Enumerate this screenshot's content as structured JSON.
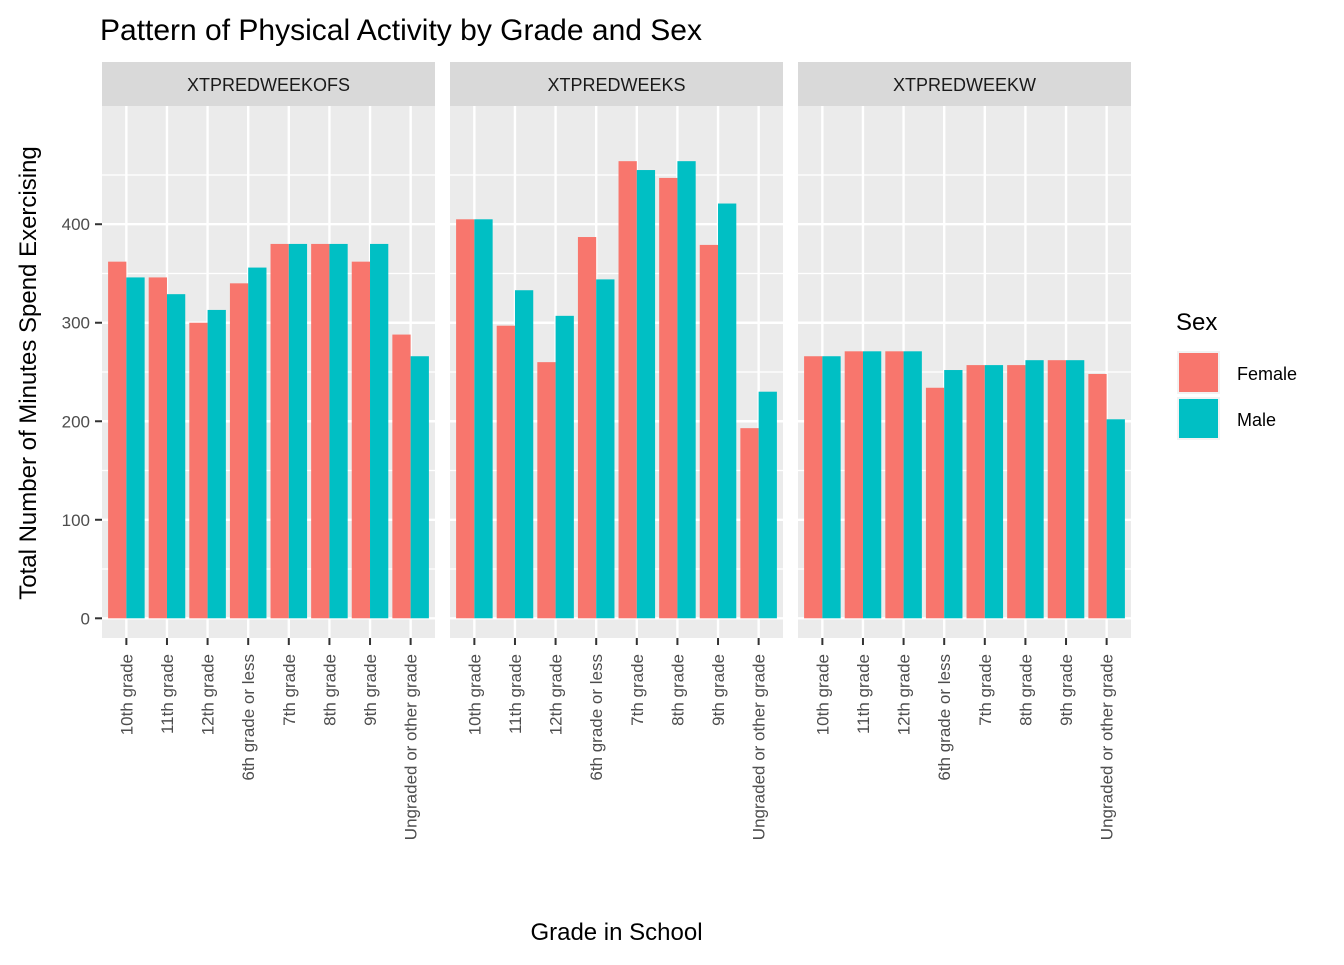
{
  "chart_data": {
    "type": "bar",
    "title": "Pattern of Physical Activity by Grade and Sex",
    "xlabel": "Grade in School",
    "ylabel": "Total Number of Minutes Spend Exercising",
    "ylim": [
      -20,
      520
    ],
    "yticks": [
      0,
      100,
      200,
      300,
      400
    ],
    "grid": true,
    "legend": {
      "title": "Sex",
      "position": "right"
    },
    "categories": [
      "10th grade",
      "11th grade",
      "12th grade",
      "6th grade or less",
      "7th grade",
      "8th grade",
      "9th grade",
      "Ungraded or other grade"
    ],
    "series_colors": {
      "Female": "#F8766D",
      "Male": "#00BFC4"
    },
    "facets": [
      {
        "label": "XTPREDWEEKOFS",
        "series": [
          {
            "name": "Female",
            "values": [
              362,
              346,
              300,
              340,
              380,
              380,
              362,
              288
            ]
          },
          {
            "name": "Male",
            "values": [
              346,
              329,
              313,
              356,
              380,
              380,
              380,
              266
            ]
          }
        ]
      },
      {
        "label": "XTPREDWEEKS",
        "series": [
          {
            "name": "Female",
            "values": [
              405,
              297,
              260,
              387,
              464,
              447,
              379,
              193
            ]
          },
          {
            "name": "Male",
            "values": [
              405,
              333,
              307,
              344,
              455,
              464,
              421,
              230
            ]
          }
        ]
      },
      {
        "label": "XTPREDWEEKW",
        "series": [
          {
            "name": "Female",
            "values": [
              266,
              271,
              271,
              234,
              257,
              257,
              262,
              248
            ]
          },
          {
            "name": "Male",
            "values": [
              266,
              271,
              271,
              252,
              257,
              262,
              262,
              202
            ]
          }
        ]
      }
    ]
  }
}
